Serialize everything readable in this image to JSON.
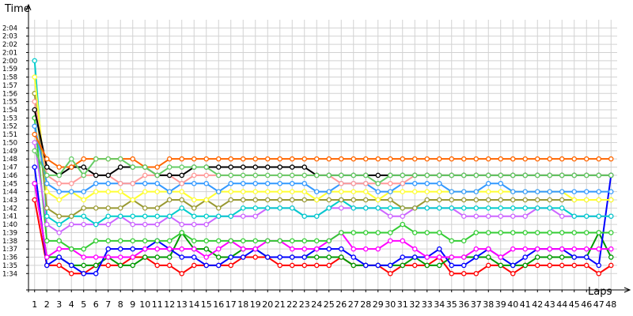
{
  "chart_data": {
    "type": "line",
    "title": "",
    "ylabel": "Time",
    "xlabel": "Laps",
    "x": [
      1,
      2,
      3,
      4,
      5,
      6,
      7,
      8,
      9,
      10,
      11,
      12,
      13,
      14,
      15,
      16,
      17,
      18,
      19,
      20,
      21,
      22,
      23,
      24,
      25,
      26,
      27,
      28,
      29,
      30,
      31,
      32,
      33,
      34,
      35,
      36,
      37,
      38,
      39,
      40,
      41,
      42,
      43,
      44,
      45,
      46,
      47,
      48
    ],
    "ylim_seconds": [
      92,
      125
    ],
    "y_ticks": [
      "1:34",
      "1:35",
      "1:36",
      "1:37",
      "1:38",
      "1:39",
      "1:40",
      "1:41",
      "1:42",
      "1:43",
      "1:44",
      "1:45",
      "1:46",
      "1:47",
      "1:48",
      "1:49",
      "1:50",
      "1:51",
      "1:52",
      "1:53",
      "1:54",
      "1:55",
      "1:56",
      "1:57",
      "1:58",
      "1:59",
      "2:00",
      "2:01",
      "2:02",
      "2:03",
      "2:04"
    ],
    "grid": true,
    "legend": "none",
    "series": [
      {
        "color": "#ff0000",
        "values": [
          103,
          95,
          95,
          94,
          94,
          95,
          95,
          95,
          96,
          96,
          95,
          95,
          94,
          95,
          95,
          95,
          95,
          96,
          96,
          96,
          95,
          95,
          95,
          95,
          95,
          96,
          95,
          95,
          95,
          94,
          95,
          95,
          95,
          96,
          94,
          94,
          94,
          95,
          95,
          94,
          95,
          95,
          95,
          95,
          95,
          95,
          94,
          95
        ]
      },
      {
        "color": "#009900",
        "values": [
          105,
          96,
          96,
          95,
          95,
          95,
          96,
          95,
          95,
          96,
          96,
          96,
          99,
          97,
          97,
          96,
          96,
          97,
          97,
          96,
          96,
          96,
          96,
          96,
          96,
          96,
          95,
          95,
          95,
          95,
          95,
          96,
          95,
          95,
          96,
          96,
          96,
          96,
          95,
          95,
          95,
          96,
          96,
          96,
          96,
          96,
          99,
          96
        ]
      },
      {
        "color": "#0000ff",
        "values": [
          107,
          95,
          96,
          95,
          94,
          94,
          97,
          97,
          97,
          97,
          98,
          97,
          96,
          96,
          95,
          95,
          96,
          96,
          97,
          96,
          96,
          96,
          96,
          97,
          97,
          97,
          96,
          95,
          95,
          95,
          96,
          96,
          96,
          97,
          95,
          95,
          96,
          97,
          96,
          95,
          96,
          97,
          97,
          97,
          96,
          96,
          95,
          106
        ]
      },
      {
        "color": "#ff00ff",
        "values": [
          105,
          96,
          97,
          97,
          96,
          96,
          96,
          96,
          96,
          97,
          97,
          97,
          97,
          97,
          96,
          97,
          98,
          97,
          97,
          98,
          98,
          97,
          97,
          97,
          98,
          99,
          97,
          97,
          97,
          98,
          98,
          97,
          96,
          96,
          96,
          96,
          97,
          97,
          96,
          97,
          97,
          97,
          97,
          97,
          97,
          97,
          97,
          97
        ]
      },
      {
        "color": "#33cc33",
        "values": [
          113,
          98,
          98,
          97,
          97,
          98,
          98,
          98,
          98,
          98,
          98,
          98,
          99,
          98,
          98,
          98,
          98,
          98,
          98,
          98,
          98,
          98,
          98,
          98,
          98,
          99,
          99,
          99,
          99,
          99,
          100,
          99,
          99,
          99,
          98,
          98,
          99,
          99,
          99,
          99,
          99,
          99,
          99,
          99,
          99,
          99,
          99,
          99
        ]
      },
      {
        "color": "#cc66ff",
        "values": [
          110,
          100,
          99,
          100,
          100,
          100,
          100,
          101,
          100,
          100,
          100,
          101,
          100,
          100,
          100,
          101,
          101,
          101,
          101,
          102,
          102,
          102,
          101,
          101,
          102,
          102,
          102,
          102,
          102,
          101,
          101,
          102,
          102,
          102,
          102,
          101,
          101,
          101,
          101,
          101,
          101,
          102,
          102,
          101,
          101,
          101,
          101,
          101
        ]
      },
      {
        "color": "#00cccc",
        "values": [
          120,
          101,
          100,
          101,
          101,
          100,
          101,
          101,
          101,
          101,
          101,
          101,
          102,
          101,
          101,
          101,
          101,
          102,
          102,
          102,
          102,
          102,
          101,
          101,
          102,
          103,
          102,
          102,
          102,
          102,
          102,
          102,
          102,
          102,
          102,
          102,
          102,
          102,
          102,
          102,
          102,
          102,
          102,
          102,
          101,
          101,
          101,
          101
        ]
      },
      {
        "color": "#999933",
        "values": [
          116,
          102,
          101,
          101,
          102,
          102,
          102,
          102,
          103,
          102,
          102,
          103,
          103,
          102,
          103,
          102,
          103,
          103,
          103,
          103,
          103,
          103,
          103,
          103,
          103,
          103,
          103,
          103,
          103,
          103,
          102,
          102,
          103,
          103,
          103,
          103,
          103,
          103,
          103,
          103,
          103,
          103,
          103,
          103,
          103,
          103,
          103,
          103
        ]
      },
      {
        "color": "#ffff33",
        "values": [
          118,
          104,
          103,
          104,
          103,
          104,
          104,
          104,
          103,
          104,
          104,
          104,
          104,
          103,
          103,
          104,
          104,
          104,
          104,
          104,
          104,
          104,
          104,
          103,
          104,
          104,
          104,
          104,
          103,
          104,
          104,
          104,
          104,
          104,
          104,
          104,
          104,
          104,
          104,
          104,
          104,
          104,
          104,
          104,
          103,
          103,
          103,
          103
        ]
      },
      {
        "color": "#3399ff",
        "values": [
          112,
          105,
          104,
          104,
          104,
          105,
          105,
          105,
          105,
          105,
          105,
          104,
          105,
          105,
          105,
          104,
          105,
          105,
          105,
          105,
          105,
          105,
          105,
          104,
          104,
          105,
          105,
          105,
          104,
          104,
          105,
          105,
          105,
          105,
          104,
          104,
          104,
          105,
          105,
          104,
          104,
          104,
          104,
          104,
          104,
          104,
          104,
          104
        ]
      },
      {
        "color": "#ff9999",
        "values": [
          115,
          106,
          105,
          105,
          106,
          106,
          106,
          105,
          105,
          106,
          106,
          106,
          105,
          106,
          106,
          106,
          106,
          106,
          106,
          106,
          106,
          106,
          106,
          106,
          106,
          105,
          105,
          105,
          105,
          105,
          105,
          106,
          106,
          106,
          106,
          106,
          106,
          106,
          106,
          106,
          106,
          106,
          106,
          106,
          106,
          106,
          106,
          106
        ]
      },
      {
        "color": "#000000",
        "values": [
          114,
          107,
          106,
          107,
          107,
          106,
          106,
          107,
          107,
          107,
          106,
          106,
          106,
          107,
          107,
          107,
          107,
          107,
          107,
          107,
          107,
          107,
          107,
          106,
          106,
          106,
          106,
          106,
          106,
          106,
          106,
          106,
          106,
          106,
          106,
          106,
          106,
          106,
          106,
          106,
          106,
          106,
          106,
          106,
          106,
          106,
          106,
          106
        ]
      },
      {
        "color": "#ff6600",
        "values": [
          111,
          108,
          107,
          107,
          108,
          108,
          108,
          108,
          108,
          107,
          107,
          108,
          108,
          108,
          108,
          108,
          108,
          108,
          108,
          108,
          108,
          108,
          108,
          108,
          108,
          108,
          108,
          108,
          108,
          108,
          108,
          108,
          108,
          108,
          108,
          108,
          108,
          108,
          108,
          108,
          108,
          108,
          108,
          108,
          108,
          108,
          108,
          108
        ]
      },
      {
        "color": "#66cc66",
        "values": [
          109,
          106,
          106,
          108,
          106,
          108,
          108,
          108,
          107,
          107,
          106,
          107,
          107,
          107,
          107,
          106,
          106,
          106,
          106,
          106,
          106,
          106,
          106,
          106,
          106,
          106,
          106,
          106,
          105,
          106,
          106,
          106,
          106,
          106,
          106,
          106,
          106,
          106,
          106,
          106,
          106,
          106,
          106,
          106,
          106,
          106,
          106,
          106
        ]
      }
    ]
  }
}
